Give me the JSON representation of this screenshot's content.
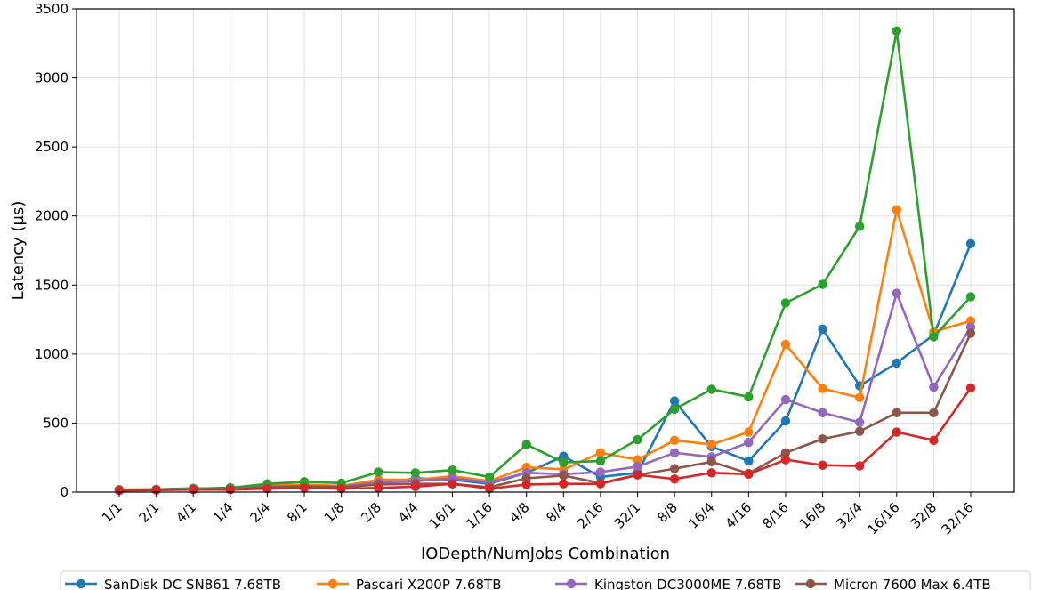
{
  "chart_data": {
    "type": "line",
    "title": "",
    "xlabel": "IODepth/NumJobs Combination",
    "ylabel": "Latency (µs)",
    "ylim": [
      0,
      3500
    ],
    "yticks": [
      0,
      500,
      1000,
      1500,
      2000,
      2500,
      3000,
      3500
    ],
    "grid": true,
    "legend_position": "bottom",
    "categories": [
      "1/1",
      "2/1",
      "4/1",
      "1/4",
      "2/4",
      "8/1",
      "1/8",
      "2/8",
      "4/4",
      "16/1",
      "1/16",
      "4/8",
      "8/4",
      "2/16",
      "32/1",
      "8/8",
      "16/4",
      "4/16",
      "8/16",
      "16/8",
      "32/4",
      "16/16",
      "32/8",
      "32/16"
    ],
    "series": [
      {
        "name": "SanDisk DC SN861 7.68TB",
        "color": "#1f77b4",
        "values": [
          15,
          18,
          25,
          32,
          55,
          50,
          40,
          60,
          100,
          90,
          60,
          140,
          260,
          110,
          140,
          660,
          330,
          225,
          515,
          1180,
          770,
          935,
          1140,
          1800
        ]
      },
      {
        "name": "Pascari X200P 7.68TB",
        "color": "#ff7f0e",
        "values": [
          15,
          18,
          25,
          28,
          45,
          55,
          45,
          90,
          90,
          115,
          80,
          180,
          165,
          285,
          235,
          375,
          345,
          435,
          1070,
          750,
          685,
          2045,
          1160,
          1240
        ]
      },
      {
        "name": "Kingston DC3000ME 7.68TB",
        "color": "#9467bd",
        "values": [
          15,
          20,
          28,
          25,
          40,
          45,
          40,
          70,
          80,
          100,
          70,
          140,
          130,
          145,
          185,
          285,
          255,
          360,
          670,
          575,
          505,
          1440,
          760,
          1195
        ]
      },
      {
        "name": "Micron 7600 Max 6.4TB",
        "color": "#8c564b",
        "values": [
          15,
          18,
          22,
          22,
          35,
          40,
          35,
          55,
          60,
          60,
          35,
          100,
          120,
          65,
          125,
          170,
          220,
          135,
          285,
          385,
          440,
          575,
          575,
          1150
        ]
      },
      {
        "name": "",
        "color": "#2ca02c",
        "values": [
          18,
          20,
          25,
          30,
          60,
          75,
          65,
          145,
          140,
          160,
          110,
          345,
          215,
          225,
          380,
          600,
          745,
          690,
          1370,
          1505,
          1925,
          3340,
          1125,
          1415
        ]
      },
      {
        "name": "",
        "color": "#d62728",
        "values": [
          12,
          15,
          18,
          18,
          25,
          30,
          25,
          30,
          40,
          60,
          25,
          55,
          60,
          60,
          125,
          95,
          140,
          130,
          235,
          195,
          190,
          435,
          375,
          755
        ]
      }
    ]
  }
}
